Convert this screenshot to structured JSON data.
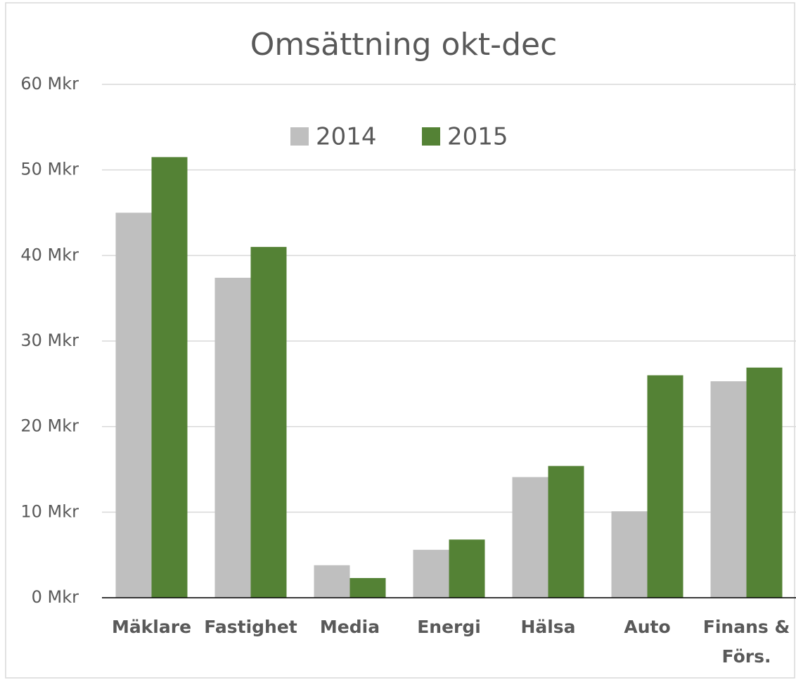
{
  "chart_data": {
    "type": "bar",
    "title": "Omsättning okt-dec",
    "categories": [
      "Mäklare",
      "Fastighet",
      "Media",
      "Energi",
      "Hälsa",
      "Auto",
      "Finans & Förs."
    ],
    "series": [
      {
        "name": "2014",
        "color": "#bfbfbf",
        "values": [
          45.0,
          37.4,
          3.8,
          5.6,
          14.1,
          10.1,
          25.3
        ]
      },
      {
        "name": "2015",
        "color": "#548235",
        "values": [
          51.5,
          41.0,
          2.3,
          6.8,
          15.4,
          26.0,
          26.9
        ]
      }
    ],
    "ylim": [
      0,
      60
    ],
    "yticks": [
      {
        "value": 0,
        "label": "0 Mkr"
      },
      {
        "value": 10,
        "label": "10 Mkr"
      },
      {
        "value": 20,
        "label": "20 Mkr"
      },
      {
        "value": 30,
        "label": "30 Mkr"
      },
      {
        "value": 40,
        "label": "40 Mkr"
      },
      {
        "value": 50,
        "label": "50 Mkr"
      },
      {
        "value": 60,
        "label": "60 Mkr"
      }
    ],
    "grid": true,
    "legend": "top"
  }
}
